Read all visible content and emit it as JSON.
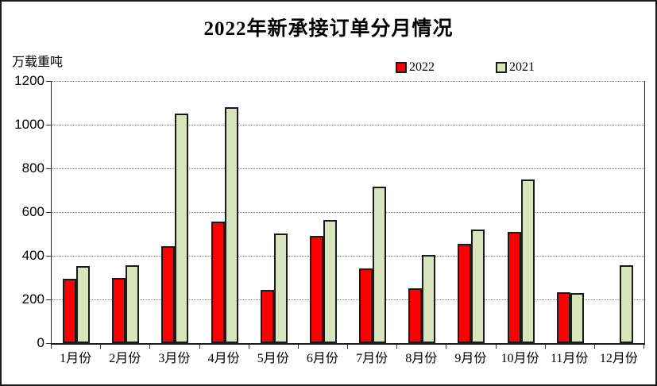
{
  "title": "2022年新承接订单分月情况",
  "y_axis_unit": "万载重吨",
  "legend": [
    {
      "label": "2022",
      "color": "#ff0000"
    },
    {
      "label": "2021",
      "color": "#d8e4bc"
    }
  ],
  "colors": {
    "bar_2022": "#ff0000",
    "bar_2021": "#d8e4bc",
    "bar_border": "#1a1a1a",
    "gridline": "#808080",
    "axis": "#1a1a1a"
  },
  "chart_data": {
    "type": "bar",
    "title": "2022年新承接订单分月情况",
    "ylabel": "万载重吨",
    "xlabel": "",
    "categories": [
      "1月份",
      "2月份",
      "3月份",
      "4月份",
      "5月份",
      "6月份",
      "7月份",
      "8月份",
      "9月份",
      "10月份",
      "11月份",
      "12月份"
    ],
    "series": [
      {
        "name": "2022",
        "color": "#ff0000",
        "values": [
          280,
          282,
          428,
          543,
          230,
          475,
          328,
          235,
          440,
          495,
          220,
          0
        ]
      },
      {
        "name": "2021",
        "color": "#d8e4bc",
        "values": [
          338,
          342,
          1038,
          1065,
          488,
          550,
          700,
          390,
          505,
          735,
          215,
          340
        ]
      }
    ],
    "ylim": [
      0,
      1200
    ],
    "yticks": [
      0,
      200,
      400,
      600,
      800,
      1000,
      1200
    ],
    "grid": "horizontal-dotted",
    "legend_position": "top-center"
  }
}
